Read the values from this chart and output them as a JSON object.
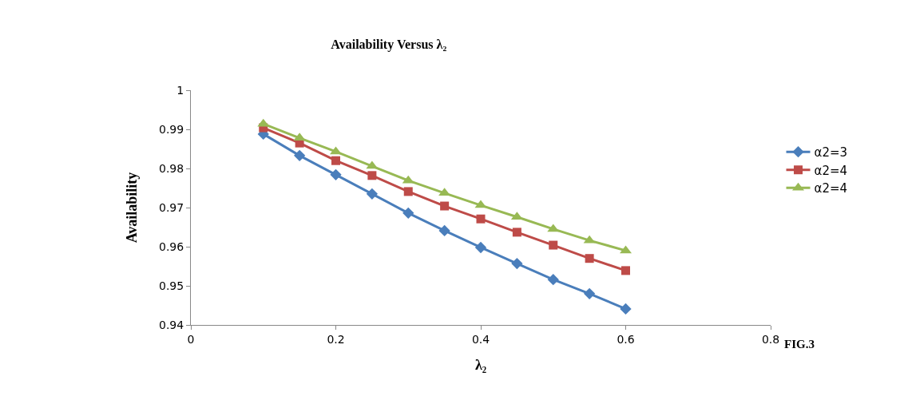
{
  "chart_data": {
    "type": "line",
    "title": "Availability Versus λ₂",
    "xlabel": "λ₂",
    "ylabel": "Availability",
    "annotations": [
      "FIG.3"
    ],
    "x": [
      0.1,
      0.15,
      0.2,
      0.25,
      0.3,
      0.35,
      0.4,
      0.45,
      0.5,
      0.55,
      0.6
    ],
    "series": [
      {
        "name": "α2=3",
        "color": "#4a7ebb",
        "marker": "diamond",
        "values": [
          0.9888,
          0.9833,
          0.9784,
          0.9735,
          0.9686,
          0.9641,
          0.9598,
          0.9557,
          0.9516,
          0.948,
          0.9441
        ]
      },
      {
        "name": "α2=4",
        "color": "#be4b48",
        "marker": "square",
        "values": [
          0.9904,
          0.9865,
          0.982,
          0.9782,
          0.9741,
          0.9704,
          0.9671,
          0.9637,
          0.9604,
          0.957,
          0.9539
        ]
      },
      {
        "name": "α2=4",
        "color": "#98b954",
        "marker": "triangle",
        "values": [
          0.9914,
          0.9878,
          0.9843,
          0.9806,
          0.9769,
          0.9737,
          0.9706,
          0.9676,
          0.9645,
          0.9616,
          0.959
        ]
      }
    ],
    "xlim": [
      0,
      0.8
    ],
    "xticks": [
      0,
      0.2,
      0.4,
      0.6,
      0.8
    ],
    "ylim": [
      0.94,
      1
    ],
    "yticks": [
      0.94,
      0.95,
      0.96,
      0.97,
      0.98,
      0.99,
      1
    ],
    "grid": false,
    "legend": "right",
    "line_style": "solid"
  }
}
